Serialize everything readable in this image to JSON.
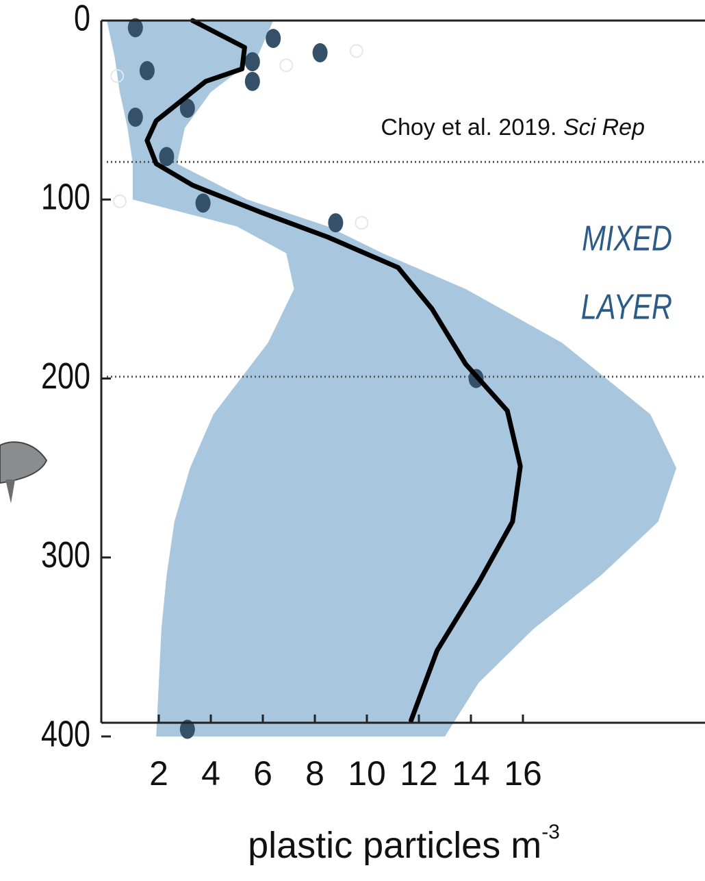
{
  "chart_data": {
    "type": "depth-profile",
    "x_label": "plastic particles m",
    "x_label_superscript": "-3",
    "annotation_citation": "Choy et al. 2019. ",
    "annotation_journal": "Sci Rep",
    "annotation_layer": [
      "MIXED",
      "LAYER"
    ],
    "xlim": [
      0,
      23
    ],
    "xticks": [
      2,
      4,
      6,
      8,
      10,
      12,
      14,
      16
    ],
    "ylim": [
      0,
      400
    ],
    "yticks": [
      0,
      100,
      200,
      300,
      400
    ],
    "y_inverted": true,
    "reference_depths": [
      79,
      199
    ],
    "band": {
      "color": "#a9c6df",
      "depth": [
        0,
        20,
        40,
        60,
        80,
        100,
        115,
        130,
        150,
        180,
        220,
        250,
        280,
        310,
        340,
        370,
        400
      ],
      "lower": [
        0,
        0.3,
        0.5,
        0.8,
        1.0,
        1.0,
        5.0,
        6.9,
        7.2,
        6.2,
        4.1,
        3.2,
        2.6,
        2.3,
        2.1,
        2.0,
        1.9
      ],
      "upper": [
        6.4,
        5.8,
        4.0,
        3.0,
        2.7,
        5.4,
        8.5,
        10.6,
        13.8,
        17.5,
        20.9,
        21.9,
        21.2,
        19.0,
        16.4,
        14.3,
        13.0
      ]
    },
    "mean_line": {
      "color": "#000000",
      "depth": [
        0,
        15,
        27,
        34,
        56,
        67,
        80,
        92,
        107,
        121,
        138,
        161,
        192,
        218,
        249,
        280,
        314,
        352,
        391
      ],
      "x": [
        3.3,
        5.3,
        5.2,
        3.8,
        1.9,
        1.55,
        1.9,
        3.3,
        5.9,
        8.5,
        11.2,
        12.5,
        13.8,
        15.4,
        15.9,
        15.6,
        14.3,
        12.7,
        11.7
      ]
    },
    "points": {
      "color": "#35516a",
      "depth": [
        4,
        10,
        18,
        23,
        34,
        28,
        49,
        54,
        76,
        102,
        113,
        200,
        396
      ],
      "x": [
        1.1,
        6.4,
        8.2,
        5.6,
        5.6,
        1.55,
        3.1,
        1.1,
        2.3,
        3.7,
        8.8,
        14.2,
        3.1
      ]
    },
    "open_points": {
      "depth": [
        25,
        17,
        31,
        101,
        113
      ],
      "x": [
        6.9,
        9.6,
        0.4,
        0.5,
        9.8
      ]
    }
  }
}
